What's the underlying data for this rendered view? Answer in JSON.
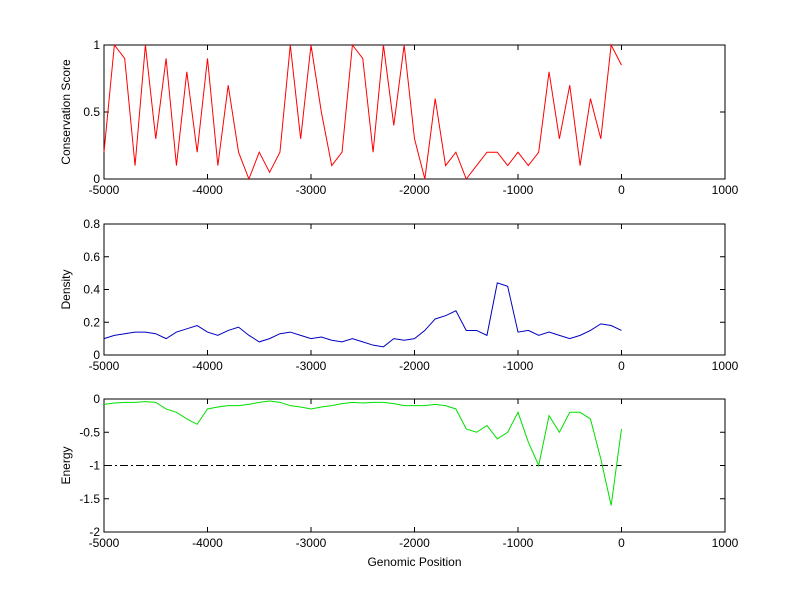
{
  "chart_data": [
    {
      "type": "line",
      "ylabel": "Conservation Score",
      "color": "#ff0000",
      "xlim": [
        -5000,
        1000
      ],
      "ylim": [
        0,
        1
      ],
      "xticks": [
        -5000,
        -4000,
        -3000,
        -2000,
        -1000,
        0,
        1000
      ],
      "yticks": [
        0,
        0.5,
        1
      ],
      "x": [
        -5000,
        -4900,
        -4800,
        -4700,
        -4600,
        -4500,
        -4400,
        -4300,
        -4200,
        -4100,
        -4000,
        -3900,
        -3800,
        -3700,
        -3600,
        -3500,
        -3400,
        -3300,
        -3200,
        -3100,
        -3000,
        -2900,
        -2800,
        -2700,
        -2600,
        -2500,
        -2400,
        -2300,
        -2200,
        -2100,
        -2000,
        -1900,
        -1800,
        -1700,
        -1600,
        -1500,
        -1400,
        -1300,
        -1200,
        -1100,
        -1000,
        -900,
        -800,
        -700,
        -600,
        -500,
        -400,
        -300,
        -200,
        -100,
        0
      ],
      "values": [
        0.2,
        1,
        0.9,
        0.1,
        1,
        0.3,
        0.9,
        0.1,
        0.8,
        0.2,
        0.9,
        0.1,
        0.7,
        0.2,
        0,
        0.2,
        0.05,
        0.2,
        1,
        0.3,
        1,
        0.5,
        0.1,
        0.2,
        1,
        0.9,
        0.2,
        1,
        0.4,
        1,
        0.3,
        0,
        0.6,
        0.1,
        0.2,
        0,
        0.1,
        0.2,
        0.2,
        0.1,
        0.2,
        0.1,
        0.2,
        0.8,
        0.3,
        0.7,
        0.1,
        0.6,
        0.3,
        1,
        0.85
      ]
    },
    {
      "type": "line",
      "ylabel": "Density",
      "color": "#0000c0",
      "xlim": [
        -5000,
        1000
      ],
      "ylim": [
        0,
        0.8
      ],
      "xticks": [
        -5000,
        -4000,
        -3000,
        -2000,
        -1000,
        0,
        1000
      ],
      "yticks": [
        0,
        0.2,
        0.4,
        0.6,
        0.8
      ],
      "x": [
        -5000,
        -4900,
        -4800,
        -4700,
        -4600,
        -4500,
        -4400,
        -4300,
        -4200,
        -4100,
        -4000,
        -3900,
        -3800,
        -3700,
        -3600,
        -3500,
        -3400,
        -3300,
        -3200,
        -3100,
        -3000,
        -2900,
        -2800,
        -2700,
        -2600,
        -2500,
        -2400,
        -2300,
        -2200,
        -2100,
        -2000,
        -1900,
        -1800,
        -1700,
        -1600,
        -1500,
        -1400,
        -1300,
        -1200,
        -1100,
        -1000,
        -900,
        -800,
        -700,
        -600,
        -500,
        -400,
        -300,
        -200,
        -100,
        0
      ],
      "values": [
        0.1,
        0.12,
        0.13,
        0.14,
        0.14,
        0.13,
        0.1,
        0.14,
        0.16,
        0.18,
        0.14,
        0.12,
        0.15,
        0.17,
        0.12,
        0.08,
        0.1,
        0.13,
        0.14,
        0.12,
        0.1,
        0.11,
        0.09,
        0.08,
        0.1,
        0.08,
        0.06,
        0.05,
        0.1,
        0.09,
        0.1,
        0.15,
        0.22,
        0.24,
        0.27,
        0.15,
        0.15,
        0.12,
        0.44,
        0.42,
        0.14,
        0.15,
        0.12,
        0.14,
        0.12,
        0.1,
        0.12,
        0.15,
        0.19,
        0.18,
        0.15
      ]
    },
    {
      "type": "line",
      "ylabel": "Energy",
      "xlabel": "Genomic Position",
      "color": "#00e000",
      "xlim": [
        -5000,
        1000
      ],
      "ylim": [
        -2,
        0
      ],
      "xticks": [
        -5000,
        -4000,
        -3000,
        -2000,
        -1000,
        0,
        1000
      ],
      "yticks": [
        -2,
        -1.5,
        -1,
        -0.5,
        0
      ],
      "hline": {
        "y": -1,
        "x": [
          -5000,
          0
        ]
      },
      "x": [
        -5000,
        -4900,
        -4800,
        -4700,
        -4600,
        -4500,
        -4400,
        -4300,
        -4200,
        -4100,
        -4000,
        -3900,
        -3800,
        -3700,
        -3600,
        -3500,
        -3400,
        -3300,
        -3200,
        -3100,
        -3000,
        -2900,
        -2800,
        -2700,
        -2600,
        -2500,
        -2400,
        -2300,
        -2200,
        -2100,
        -2000,
        -1900,
        -1800,
        -1700,
        -1600,
        -1500,
        -1400,
        -1300,
        -1200,
        -1100,
        -1000,
        -900,
        -800,
        -700,
        -600,
        -500,
        -400,
        -300,
        -200,
        -100,
        0
      ],
      "values": [
        -0.08,
        -0.06,
        -0.05,
        -0.05,
        -0.04,
        -0.05,
        -0.15,
        -0.2,
        -0.3,
        -0.38,
        -0.15,
        -0.12,
        -0.1,
        -0.1,
        -0.08,
        -0.05,
        -0.03,
        -0.05,
        -0.1,
        -0.12,
        -0.15,
        -0.12,
        -0.1,
        -0.07,
        -0.05,
        -0.06,
        -0.05,
        -0.05,
        -0.07,
        -0.1,
        -0.1,
        -0.1,
        -0.08,
        -0.1,
        -0.15,
        -0.45,
        -0.5,
        -0.4,
        -0.6,
        -0.5,
        -0.2,
        -0.65,
        -1,
        -0.25,
        -0.5,
        -0.2,
        -0.2,
        -0.3,
        -0.9,
        -1.6,
        -0.45
      ]
    }
  ]
}
